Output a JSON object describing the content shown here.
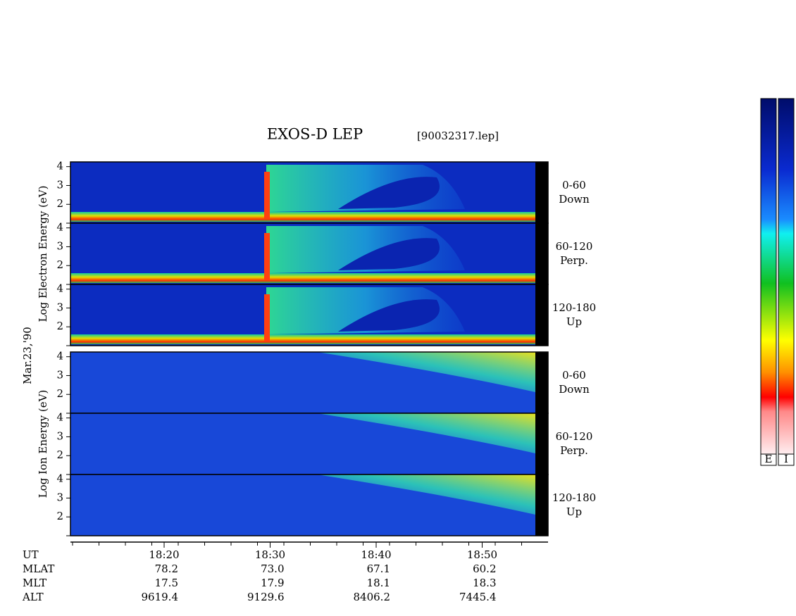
{
  "chart_data": {
    "type": "spectrogram",
    "title": "EXOS-D LEP",
    "subtitle": "[90032317.lep]",
    "date_label": "Mar.23,'90",
    "groups": [
      {
        "axis_label": "Log  Electron  Energy (eV)",
        "kind": "electron",
        "panels": [
          {
            "label": [
              "0-60",
              "Down"
            ]
          },
          {
            "label": [
              "60-120",
              "Perp."
            ]
          },
          {
            "label": [
              "120-180",
              "Up"
            ]
          }
        ]
      },
      {
        "axis_label": "Log  Ion  Energy (eV)",
        "kind": "ion",
        "panels": [
          {
            "label": [
              "0-60",
              "Down"
            ]
          },
          {
            "label": [
              "60-120",
              "Perp."
            ]
          },
          {
            "label": [
              "120-180",
              "Up"
            ]
          }
        ]
      }
    ],
    "ylim": [
      1,
      4.25
    ],
    "yticks": [
      2,
      3,
      4
    ],
    "xticks": [
      "18:20",
      "18:30",
      "18:40",
      "18:50"
    ],
    "ephemeris": [
      {
        "name": "UT"
      },
      {
        "name": "MLAT",
        "values": [
          "78.2",
          "73.0",
          "67.1",
          "60.2"
        ]
      },
      {
        "name": "MLT",
        "values": [
          "17.5",
          "17.9",
          "18.1",
          "18.3"
        ]
      },
      {
        "name": "ALT",
        "values": [
          "9619.4",
          "9129.6",
          "8406.2",
          "7445.4"
        ]
      }
    ],
    "colorbar_labels": [
      "E",
      "I"
    ]
  }
}
